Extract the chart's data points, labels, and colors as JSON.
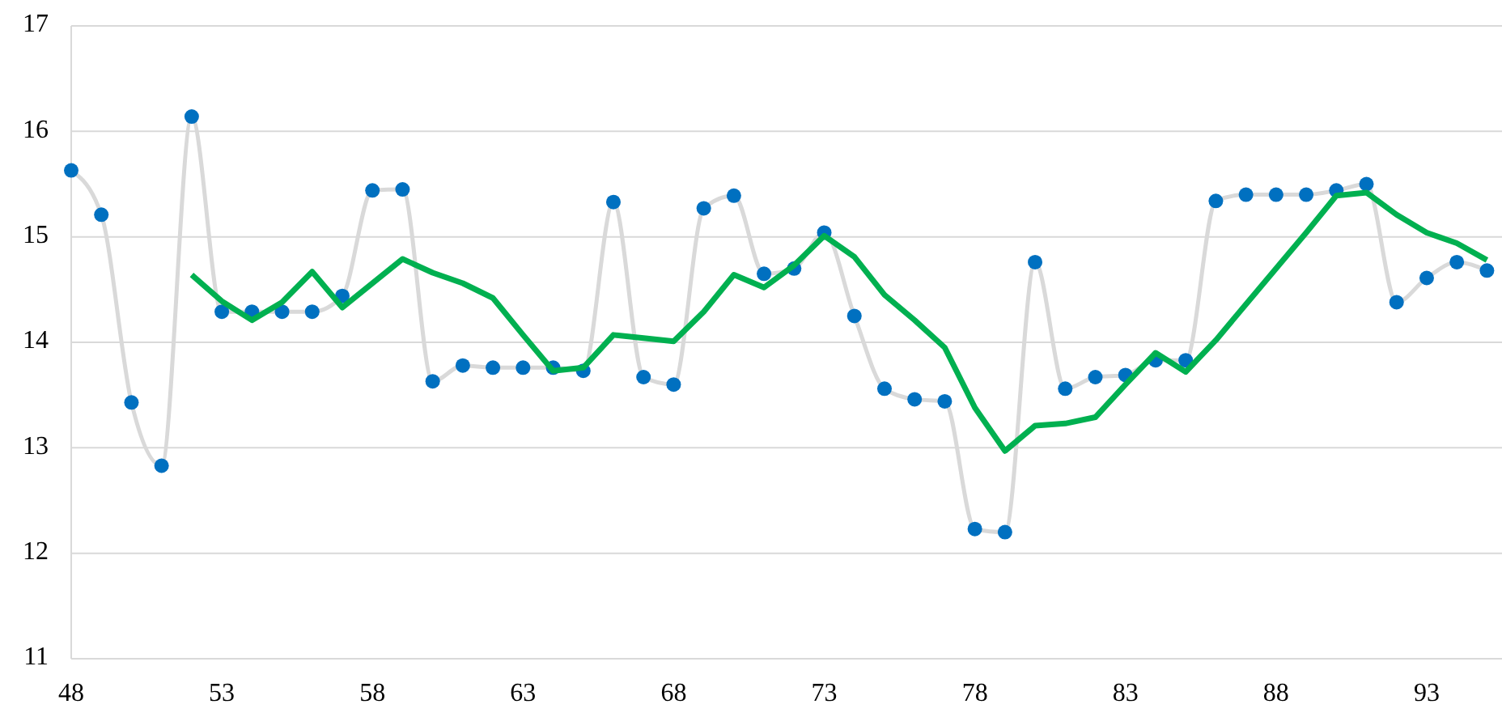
{
  "chart_data": {
    "type": "line",
    "x": [
      48,
      49,
      50,
      51,
      52,
      53,
      54,
      55,
      56,
      57,
      58,
      59,
      60,
      61,
      62,
      63,
      64,
      65,
      66,
      67,
      68,
      69,
      70,
      71,
      72,
      73,
      74,
      75,
      76,
      77,
      78,
      79,
      80,
      81,
      82,
      83,
      84,
      85,
      86,
      87,
      88,
      89,
      90,
      91,
      92,
      93,
      94,
      95
    ],
    "series": [
      {
        "color": "#d9d9d9",
        "marker": "none",
        "values": [
          15.63,
          15.21,
          13.43,
          12.83,
          16.14,
          14.29,
          14.29,
          14.29,
          14.29,
          14.44,
          15.44,
          15.45,
          13.63,
          13.78,
          13.76,
          13.76,
          13.76,
          13.73,
          15.33,
          13.67,
          13.6,
          15.27,
          15.39,
          14.65,
          14.7,
          15.04,
          14.25,
          13.56,
          13.46,
          13.44,
          12.23,
          12.2,
          14.76,
          13.56,
          13.67,
          13.69,
          13.83,
          13.83,
          15.34,
          15.4,
          15.4,
          15.4,
          15.44,
          15.5,
          14.38,
          14.61,
          14.76,
          14.68
        ]
      },
      {
        "type": "scatter",
        "color": "#0070c0",
        "marker": "circle",
        "values": [
          15.63,
          15.21,
          13.43,
          12.83,
          16.14,
          14.29,
          14.29,
          14.29,
          14.29,
          14.44,
          15.44,
          15.45,
          13.63,
          13.78,
          13.76,
          13.76,
          13.76,
          13.73,
          15.33,
          13.67,
          13.6,
          15.27,
          15.39,
          14.65,
          14.7,
          15.04,
          14.25,
          13.56,
          13.46,
          13.44,
          12.23,
          12.2,
          14.76,
          13.56,
          13.67,
          13.69,
          13.83,
          13.83,
          15.34,
          15.4,
          15.4,
          15.4,
          15.44,
          15.5,
          14.38,
          14.61,
          14.76,
          14.68
        ]
      },
      {
        "color": "#00b050",
        "marker": "none",
        "values": [
          null,
          null,
          null,
          null,
          14.64,
          14.39,
          14.21,
          14.38,
          14.67,
          14.33,
          14.56,
          14.79,
          14.66,
          14.56,
          14.42,
          14.07,
          13.73,
          13.76,
          14.07,
          14.04,
          14.01,
          14.29,
          14.64,
          14.52,
          14.73,
          15.01,
          14.81,
          14.45,
          14.21,
          13.95,
          13.38,
          12.97,
          13.21,
          13.23,
          13.29,
          13.6,
          13.9,
          13.72,
          14.02,
          14.36,
          14.7,
          15.04,
          15.39,
          15.42,
          15.21,
          15.04,
          14.94,
          14.78
        ]
      }
    ],
    "xlim": [
      48,
      95.5
    ],
    "xticks": [
      48,
      53,
      58,
      63,
      68,
      73,
      78,
      83,
      88,
      93
    ],
    "ylim": [
      11,
      17
    ],
    "yticks": [
      11,
      12,
      13,
      14,
      15,
      16,
      17
    ],
    "grid": "y"
  }
}
